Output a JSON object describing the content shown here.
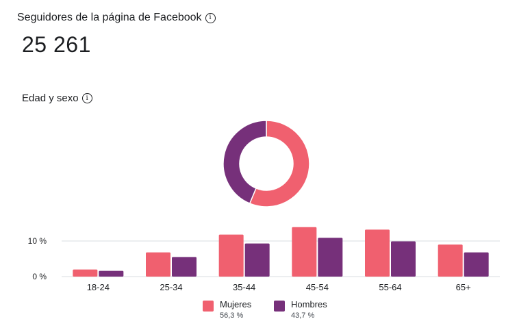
{
  "header": {
    "title": "Seguidores de la página de Facebook",
    "followers": "25 261"
  },
  "section": {
    "title": "Edad y sexo"
  },
  "colors": {
    "women": "#f0606f",
    "men": "#76307a",
    "grid": "#dadde1",
    "text": "#1c1e21"
  },
  "icons": [
    "info-icon"
  ],
  "legend": [
    {
      "name": "Mujeres",
      "pct": "56,3 %"
    },
    {
      "name": "Hombres",
      "pct": "43,7 %"
    }
  ],
  "chart_data": [
    {
      "type": "pie",
      "variant": "donut",
      "series": [
        {
          "name": "Mujeres",
          "value": 56.3
        },
        {
          "name": "Hombres",
          "value": 43.7
        }
      ]
    },
    {
      "type": "bar",
      "categories": [
        "18-24",
        "25-34",
        "35-44",
        "45-54",
        "55-64",
        "65+"
      ],
      "series": [
        {
          "name": "Mujeres",
          "values": [
            2,
            6.8,
            11.8,
            13.9,
            13.2,
            9
          ]
        },
        {
          "name": "Hombres",
          "values": [
            1.6,
            5.5,
            9.3,
            10.9,
            9.9,
            6.8
          ]
        }
      ],
      "y_ticks": [
        0,
        10
      ],
      "y_tick_labels": [
        "0 %",
        "10 %"
      ],
      "ylim": [
        0,
        14
      ],
      "grid": true
    }
  ]
}
